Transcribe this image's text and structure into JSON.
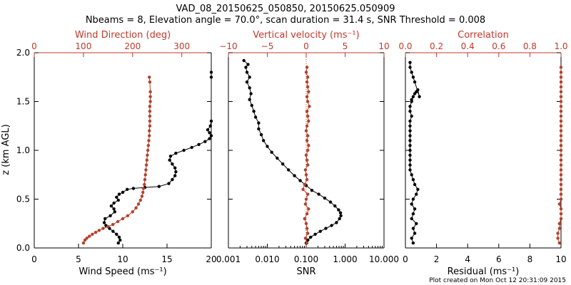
{
  "figure": {
    "title_line1": "VAD_08_20150625_050850, 20150625.050909",
    "title_line2": "Nbeams = 8, Elevation angle = 70.0°, scan duration = 31.4 s, SNR Threshold = 0.008",
    "credit": "Plot created on Mon Oct 12 20:31:09 2015",
    "colors": {
      "black_series": "#000000",
      "red_series": "#b5402a",
      "axis": "#000000",
      "red_axis": "#c0392b"
    }
  },
  "chart_data": [
    {
      "type": "line",
      "ylabel": "z (km AGL)",
      "ylim": [
        0,
        2.0
      ],
      "yticks": [
        "0.0",
        "0.5",
        "1.0",
        "1.5",
        "2.0"
      ],
      "bottom_axis": {
        "label": "Wind Speed (ms⁻¹)",
        "lim": [
          0,
          20
        ],
        "ticks": [
          "0",
          "5",
          "10",
          "15",
          "20"
        ]
      },
      "top_axis": {
        "label": "Wind Direction (deg)",
        "lim": [
          0,
          360
        ],
        "ticks": [
          "0",
          "100",
          "200",
          "300"
        ]
      },
      "series": [
        {
          "axis": "bottom",
          "color": "black",
          "x": [
            9.5,
            9.7,
            9.6,
            9.3,
            8.9,
            8.5,
            8.1,
            7.9,
            8.0,
            8.6,
            9.1,
            9.0,
            8.7,
            9.0,
            9.5,
            9.3,
            9.6,
            10.0,
            10.5,
            11.2,
            12.5,
            14.1,
            15.2,
            15.6,
            15.9,
            16.0,
            15.9,
            15.6,
            15.3,
            15.4,
            16.0,
            16.9,
            17.8,
            18.6,
            19.3,
            19.8,
            20.0,
            19.8,
            19.6,
            19.9,
            20.0,
            20.0,
            20.0
          ],
          "y": [
            0.05,
            0.08,
            0.11,
            0.14,
            0.17,
            0.2,
            0.23,
            0.26,
            0.3,
            0.33,
            0.37,
            0.4,
            0.43,
            0.46,
            0.49,
            0.52,
            0.55,
            0.57,
            0.6,
            0.61,
            0.62,
            0.63,
            0.66,
            0.7,
            0.74,
            0.78,
            0.82,
            0.86,
            0.9,
            0.94,
            0.97,
            1.0,
            1.03,
            1.06,
            1.09,
            1.12,
            1.15,
            1.18,
            1.21,
            1.25,
            1.3,
            1.75,
            1.8
          ]
        },
        {
          "axis": "top",
          "color": "red",
          "x": [
            100,
            103,
            107,
            112,
            118,
            125,
            132,
            140,
            150,
            160,
            170,
            180,
            190,
            200,
            207,
            212,
            216,
            219,
            221,
            222,
            224,
            225,
            226,
            227,
            228,
            229,
            230,
            231,
            232,
            233,
            234,
            234,
            235,
            235,
            235,
            235,
            235,
            236,
            236,
            236,
            235,
            234
          ],
          "y": [
            0.05,
            0.08,
            0.1,
            0.12,
            0.14,
            0.16,
            0.18,
            0.2,
            0.22,
            0.24,
            0.27,
            0.3,
            0.33,
            0.37,
            0.41,
            0.45,
            0.49,
            0.53,
            0.57,
            0.61,
            0.65,
            0.7,
            0.75,
            0.8,
            0.85,
            0.9,
            0.95,
            1.0,
            1.05,
            1.1,
            1.15,
            1.2,
            1.25,
            1.3,
            1.35,
            1.4,
            1.45,
            1.5,
            1.55,
            1.6,
            1.7,
            1.75
          ]
        }
      ]
    },
    {
      "type": "line",
      "ylim": [
        0,
        2.0
      ],
      "bottom_axis": {
        "label": "SNR",
        "scale": "log",
        "lim": [
          0.001,
          10
        ],
        "ticks": [
          "0.001",
          "0.010",
          "0.100",
          "1.000",
          "10.000"
        ]
      },
      "top_axis": {
        "label": "Vertical velocity (ms⁻¹)",
        "lim": [
          -10,
          10
        ],
        "ticks": [
          "−10",
          "−5",
          "0",
          "5",
          "10"
        ]
      },
      "series": [
        {
          "axis": "bottom",
          "color": "black",
          "x": [
            0.1,
            0.11,
            0.13,
            0.17,
            0.23,
            0.32,
            0.45,
            0.6,
            0.72,
            0.78,
            0.76,
            0.68,
            0.55,
            0.42,
            0.3,
            0.21,
            0.14,
            0.1,
            0.07,
            0.05,
            0.035,
            0.025,
            0.018,
            0.013,
            0.01,
            0.008,
            0.007,
            0.006,
            0.006,
            0.005,
            0.0045,
            0.004,
            0.0035,
            0.0038,
            0.0035,
            0.003,
            0.0035,
            0.003,
            0.0028,
            0.0032,
            0.0025
          ],
          "y": [
            0.05,
            0.08,
            0.11,
            0.14,
            0.17,
            0.2,
            0.23,
            0.26,
            0.3,
            0.33,
            0.36,
            0.39,
            0.43,
            0.47,
            0.51,
            0.55,
            0.59,
            0.64,
            0.69,
            0.74,
            0.8,
            0.86,
            0.92,
            0.98,
            1.04,
            1.1,
            1.16,
            1.22,
            1.28,
            1.34,
            1.4,
            1.46,
            1.52,
            1.58,
            1.64,
            1.7,
            1.75,
            1.8,
            1.85,
            1.88,
            1.92
          ]
        },
        {
          "axis": "top",
          "color": "red",
          "x": [
            0.1,
            -0.1,
            0.2,
            0.1,
            0.0,
            -0.2,
            0.1,
            0.3,
            -0.1,
            0.0,
            0.2,
            -0.4,
            -0.2,
            0.1,
            0.0,
            -0.1,
            0.2,
            0.1,
            0.0,
            0.2,
            0.3,
            0.1,
            0.2,
            0.0,
            0.1,
            0.3,
            0.2,
            0.1,
            0.4,
            0.2,
            0.1,
            0.3,
            0.2,
            0.1,
            0.2,
            0.0,
            0.1
          ],
          "y": [
            0.05,
            0.1,
            0.15,
            0.2,
            0.25,
            0.3,
            0.35,
            0.4,
            0.45,
            0.5,
            0.55,
            0.6,
            0.65,
            0.7,
            0.75,
            0.8,
            0.85,
            0.9,
            0.95,
            1.0,
            1.05,
            1.1,
            1.15,
            1.2,
            1.25,
            1.3,
            1.35,
            1.4,
            1.45,
            1.5,
            1.55,
            1.6,
            1.65,
            1.7,
            1.75,
            1.8,
            1.85
          ]
        }
      ]
    },
    {
      "type": "line",
      "ylim": [
        0,
        2.0
      ],
      "bottom_axis": {
        "label": "Residual (ms⁻¹)",
        "lim": [
          0,
          10
        ],
        "ticks": [
          "0",
          "2",
          "4",
          "6",
          "8",
          "10"
        ]
      },
      "top_axis": {
        "label": "Correlation",
        "lim": [
          0,
          1.0
        ],
        "ticks": [
          "0.0",
          "0.2",
          "0.4",
          "0.6",
          "0.8",
          "1.0"
        ]
      },
      "series": [
        {
          "axis": "bottom",
          "color": "black",
          "x": [
            0.5,
            0.4,
            0.6,
            0.5,
            0.7,
            0.4,
            0.5,
            0.6,
            0.4,
            0.5,
            0.7,
            0.8,
            0.6,
            0.5,
            0.4,
            0.3,
            0.3,
            0.3,
            0.3,
            0.3,
            0.3,
            0.3,
            0.3,
            0.3,
            0.3,
            0.3,
            0.4,
            0.3,
            0.3,
            0.4,
            0.4,
            0.5,
            0.6,
            0.7,
            0.8,
            0.9,
            0.6,
            0.5,
            0.4,
            0.3,
            0.3
          ],
          "y": [
            0.05,
            0.1,
            0.15,
            0.2,
            0.25,
            0.3,
            0.35,
            0.4,
            0.45,
            0.5,
            0.55,
            0.6,
            0.65,
            0.7,
            0.75,
            0.8,
            0.85,
            0.9,
            0.95,
            1.0,
            1.05,
            1.1,
            1.15,
            1.2,
            1.25,
            1.3,
            1.35,
            1.4,
            1.45,
            1.5,
            1.52,
            1.55,
            1.58,
            1.6,
            1.62,
            1.55,
            1.7,
            1.75,
            1.8,
            1.85,
            1.9
          ]
        },
        {
          "axis": "top",
          "color": "red",
          "x": [
            0.99,
            0.98,
            0.98,
            0.99,
            0.99,
            1.0,
            1.0,
            1.0,
            0.99,
            1.0,
            1.0,
            1.0,
            1.0,
            1.0,
            1.0,
            1.0,
            1.0,
            1.0,
            1.0,
            1.0,
            1.0,
            1.0,
            1.0,
            1.0,
            1.0,
            1.0,
            1.0,
            1.0,
            1.0,
            1.0,
            1.0,
            1.0,
            1.0,
            1.0,
            1.0,
            1.0,
            1.0
          ],
          "y": [
            0.05,
            0.1,
            0.15,
            0.2,
            0.25,
            0.3,
            0.35,
            0.4,
            0.45,
            0.5,
            0.55,
            0.6,
            0.65,
            0.7,
            0.75,
            0.8,
            0.85,
            0.9,
            0.95,
            1.0,
            1.05,
            1.1,
            1.15,
            1.2,
            1.25,
            1.3,
            1.35,
            1.4,
            1.45,
            1.5,
            1.55,
            1.6,
            1.65,
            1.7,
            1.75,
            1.8,
            1.85
          ]
        }
      ]
    }
  ]
}
